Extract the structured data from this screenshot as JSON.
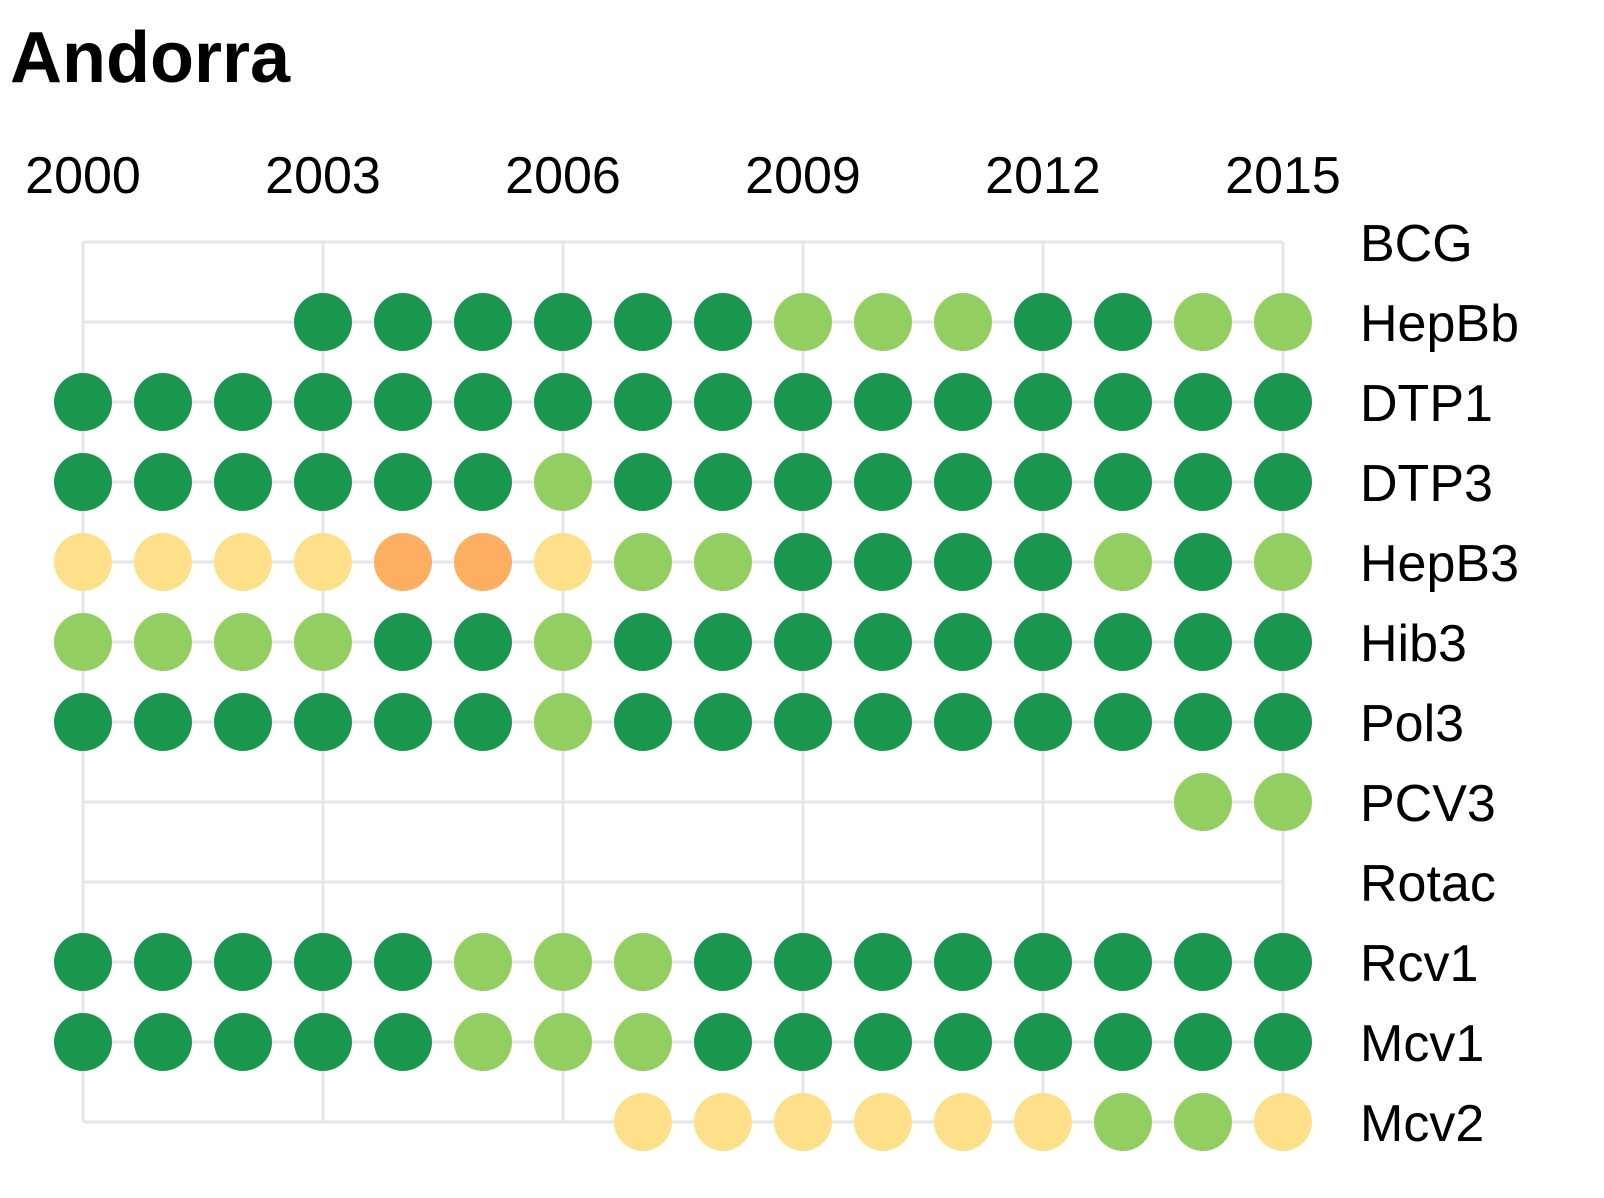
{
  "chart_data": {
    "type": "dot-matrix",
    "title": "Andorra",
    "x_ticks": [
      "2000",
      "2003",
      "2006",
      "2009",
      "2012",
      "2015"
    ],
    "years": [
      2000,
      2001,
      2002,
      2003,
      2004,
      2005,
      2006,
      2007,
      2008,
      2009,
      2010,
      2011,
      2012,
      2013,
      2014,
      2015
    ],
    "categories": [
      "BCG",
      "HepBb",
      "DTP1",
      "DTP3",
      "HepB3",
      "Hib3",
      "Pol3",
      "PCV3",
      "Rotac",
      "Rcv1",
      "Mcv1",
      "Mcv2"
    ],
    "level_colors": {
      "dark-green": "#1a964f",
      "light-green": "#93cf60",
      "yellow": "#fee08b",
      "orange": "#fdae61"
    },
    "series": [
      {
        "name": "BCG",
        "levels": [
          null,
          null,
          null,
          null,
          null,
          null,
          null,
          null,
          null,
          null,
          null,
          null,
          null,
          null,
          null,
          null
        ]
      },
      {
        "name": "HepBb",
        "levels": [
          null,
          null,
          null,
          "dark-green",
          "dark-green",
          "dark-green",
          "dark-green",
          "dark-green",
          "dark-green",
          "light-green",
          "light-green",
          "light-green",
          "dark-green",
          "dark-green",
          "light-green",
          "light-green"
        ]
      },
      {
        "name": "DTP1",
        "levels": [
          "dark-green",
          "dark-green",
          "dark-green",
          "dark-green",
          "dark-green",
          "dark-green",
          "dark-green",
          "dark-green",
          "dark-green",
          "dark-green",
          "dark-green",
          "dark-green",
          "dark-green",
          "dark-green",
          "dark-green",
          "dark-green"
        ]
      },
      {
        "name": "DTP3",
        "levels": [
          "dark-green",
          "dark-green",
          "dark-green",
          "dark-green",
          "dark-green",
          "dark-green",
          "light-green",
          "dark-green",
          "dark-green",
          "dark-green",
          "dark-green",
          "dark-green",
          "dark-green",
          "dark-green",
          "dark-green",
          "dark-green"
        ]
      },
      {
        "name": "HepB3",
        "levels": [
          "yellow",
          "yellow",
          "yellow",
          "yellow",
          "orange",
          "orange",
          "yellow",
          "light-green",
          "light-green",
          "dark-green",
          "dark-green",
          "dark-green",
          "dark-green",
          "light-green",
          "dark-green",
          "light-green"
        ]
      },
      {
        "name": "Hib3",
        "levels": [
          "light-green",
          "light-green",
          "light-green",
          "light-green",
          "dark-green",
          "dark-green",
          "light-green",
          "dark-green",
          "dark-green",
          "dark-green",
          "dark-green",
          "dark-green",
          "dark-green",
          "dark-green",
          "dark-green",
          "dark-green"
        ]
      },
      {
        "name": "Pol3",
        "levels": [
          "dark-green",
          "dark-green",
          "dark-green",
          "dark-green",
          "dark-green",
          "dark-green",
          "light-green",
          "dark-green",
          "dark-green",
          "dark-green",
          "dark-green",
          "dark-green",
          "dark-green",
          "dark-green",
          "dark-green",
          "dark-green"
        ]
      },
      {
        "name": "PCV3",
        "levels": [
          null,
          null,
          null,
          null,
          null,
          null,
          null,
          null,
          null,
          null,
          null,
          null,
          null,
          null,
          "light-green",
          "light-green"
        ]
      },
      {
        "name": "Rotac",
        "levels": [
          null,
          null,
          null,
          null,
          null,
          null,
          null,
          null,
          null,
          null,
          null,
          null,
          null,
          null,
          null,
          null
        ]
      },
      {
        "name": "Rcv1",
        "levels": [
          "dark-green",
          "dark-green",
          "dark-green",
          "dark-green",
          "dark-green",
          "light-green",
          "light-green",
          "light-green",
          "dark-green",
          "dark-green",
          "dark-green",
          "dark-green",
          "dark-green",
          "dark-green",
          "dark-green",
          "dark-green"
        ]
      },
      {
        "name": "Mcv1",
        "levels": [
          "dark-green",
          "dark-green",
          "dark-green",
          "dark-green",
          "dark-green",
          "light-green",
          "light-green",
          "light-green",
          "dark-green",
          "dark-green",
          "dark-green",
          "dark-green",
          "dark-green",
          "dark-green",
          "dark-green",
          "dark-green"
        ]
      },
      {
        "name": "Mcv2",
        "levels": [
          null,
          null,
          null,
          null,
          null,
          null,
          null,
          "yellow",
          "yellow",
          "yellow",
          "yellow",
          "yellow",
          "yellow",
          "light-green",
          "light-green",
          "yellow"
        ]
      }
    ],
    "grid": true,
    "legend": "none"
  }
}
